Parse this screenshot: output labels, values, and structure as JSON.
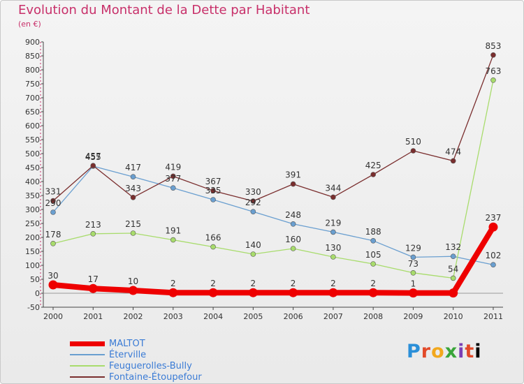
{
  "title": "Evolution du Montant de la Dette par Habitant",
  "unit": "(en €)",
  "logo_text": "Proxiti",
  "chart_data": {
    "type": "line",
    "title": "Evolution du Montant de la Dette par Habitant",
    "ylabel": "(en €)",
    "x": [
      "2000",
      "2001",
      "2002",
      "2003",
      "2004",
      "2005",
      "2006",
      "2007",
      "2008",
      "2009",
      "2010",
      "2011"
    ],
    "ylim": [
      -50,
      900
    ],
    "yticks": [
      -50,
      0,
      50,
      100,
      150,
      200,
      250,
      300,
      350,
      400,
      450,
      500,
      550,
      600,
      650,
      700,
      750,
      800,
      850,
      900
    ],
    "grid": false,
    "legend": "bottom-left",
    "series": [
      {
        "name": "MALTOT",
        "color": "#ee0000",
        "values": [
          30,
          17,
          10,
          2,
          2,
          2,
          2,
          2,
          2,
          1,
          1,
          237
        ],
        "labels": [
          "30",
          "17",
          "10",
          "2",
          "2",
          "2",
          "2",
          "2",
          "2",
          "1",
          "",
          "237"
        ]
      },
      {
        "name": "Éterville",
        "color": "#6a9fd0",
        "values": [
          290,
          455,
          417,
          377,
          335,
          292,
          248,
          219,
          188,
          129,
          132,
          102
        ],
        "labels": [
          "290",
          "455",
          "417",
          "377",
          "335",
          "292",
          "248",
          "219",
          "188",
          "129",
          "132",
          "102"
        ]
      },
      {
        "name": "Feuguerolles-Bully",
        "color": "#a8dc6c",
        "values": [
          178,
          213,
          215,
          191,
          166,
          140,
          160,
          130,
          105,
          73,
          54,
          763
        ],
        "labels": [
          "178",
          "213",
          "215",
          "191",
          "166",
          "140",
          "160",
          "130",
          "105",
          "73",
          "54",
          "763"
        ]
      },
      {
        "name": "Fontaine-Étoupefour",
        "color": "#7a2e2e",
        "values": [
          331,
          457,
          343,
          419,
          367,
          330,
          391,
          344,
          425,
          510,
          474,
          853
        ],
        "labels": [
          "331",
          "457",
          "343",
          "419",
          "367",
          "330",
          "391",
          "344",
          "425",
          "510",
          "474",
          "853"
        ]
      }
    ]
  }
}
